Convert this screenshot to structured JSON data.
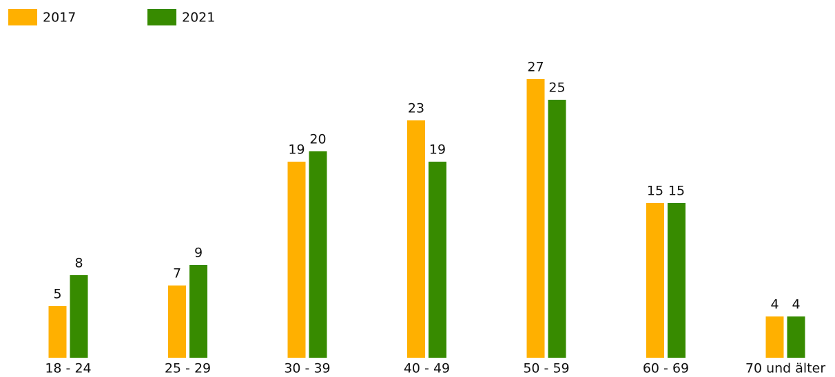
{
  "chart_data": {
    "type": "bar",
    "categories": [
      "18 - 24",
      "25 - 29",
      "30 - 39",
      "40 - 49",
      "50 - 59",
      "60 - 69",
      "70 und älter"
    ],
    "series": [
      {
        "name": "2017",
        "color": "#ffb000",
        "values": [
          5,
          7,
          19,
          23,
          27,
          15,
          4
        ]
      },
      {
        "name": "2021",
        "color": "#378b00",
        "values": [
          8,
          9,
          20,
          19,
          25,
          15,
          4
        ]
      }
    ],
    "legend": "top-left"
  }
}
